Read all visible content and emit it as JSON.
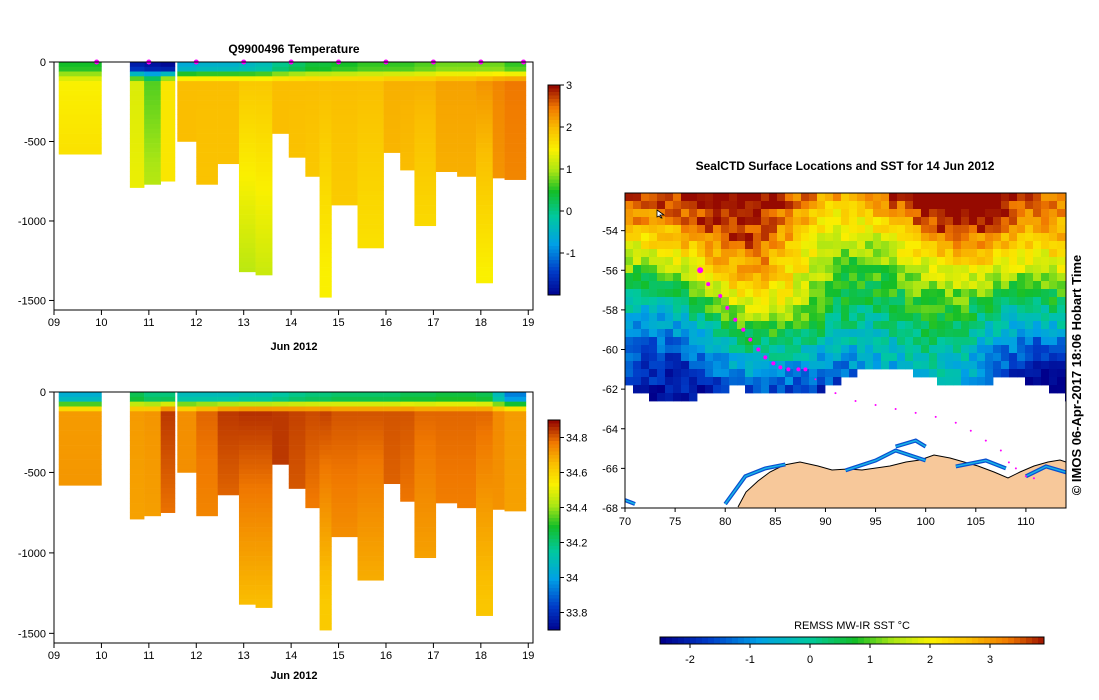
{
  "chart_data": [
    {
      "type": "heatmap",
      "id": "temperature",
      "title": "Q9900496  Temperature",
      "xlabel": "Jun 2012",
      "x_ticks": [
        "09",
        "10",
        "11",
        "12",
        "13",
        "14",
        "15",
        "16",
        "17",
        "18",
        "19"
      ],
      "x_range": [
        9.0,
        19.1
      ],
      "y_ticks": [
        "0",
        "-500",
        "-1000",
        "-1500"
      ],
      "y_range": [
        -1560,
        0
      ],
      "colorbar_ticks": [
        "3",
        "2",
        "1",
        "0",
        "-1"
      ],
      "colorbar_range": [
        -2,
        3
      ],
      "profiles": [
        {
          "t0": 9.1,
          "t1": 10.0,
          "depth": 580,
          "surface": 0.5,
          "mixed": 1.5,
          "deep": 1.9
        },
        {
          "t0": 10.6,
          "t1": 10.9,
          "depth": 790,
          "surface": -1.7,
          "mixed": 1.3,
          "deep": 1.5
        },
        {
          "t0": 10.9,
          "t1": 11.25,
          "depth": 770,
          "surface": -1.8,
          "mixed": 0.7,
          "deep": 1.4
        },
        {
          "t0": 11.25,
          "t1": 11.55,
          "depth": 750,
          "surface": -1.9,
          "mixed": 1.6,
          "deep": 1.6
        },
        {
          "t0": 11.6,
          "t1": 12.0,
          "depth": 500,
          "surface": -0.6,
          "mixed": 2.0,
          "deep": 2.0
        },
        {
          "t0": 12.0,
          "t1": 12.45,
          "depth": 770,
          "surface": -0.5,
          "mixed": 2.0,
          "deep": 1.9
        },
        {
          "t0": 12.45,
          "t1": 12.9,
          "depth": 640,
          "surface": -0.5,
          "mixed": 2.0,
          "deep": 1.9
        },
        {
          "t0": 12.9,
          "t1": 13.25,
          "depth": 1320,
          "surface": -0.4,
          "mixed": 1.9,
          "deep": 1.1
        },
        {
          "t0": 13.25,
          "t1": 13.6,
          "depth": 1340,
          "surface": -0.3,
          "mixed": 1.9,
          "deep": 1.2
        },
        {
          "t0": 13.6,
          "t1": 13.95,
          "depth": 450,
          "surface": 0.0,
          "mixed": 2.0,
          "deep": 2.0
        },
        {
          "t0": 13.95,
          "t1": 14.3,
          "depth": 600,
          "surface": 0.2,
          "mixed": 2.0,
          "deep": 1.9
        },
        {
          "t0": 14.3,
          "t1": 14.6,
          "depth": 720,
          "surface": 0.4,
          "mixed": 2.0,
          "deep": 1.8
        },
        {
          "t0": 14.6,
          "t1": 14.85,
          "depth": 1480,
          "surface": 0.4,
          "mixed": 2.0,
          "deep": 1.5
        },
        {
          "t0": 14.85,
          "t1": 15.4,
          "depth": 900,
          "surface": 0.5,
          "mixed": 2.0,
          "deep": 1.8
        },
        {
          "t0": 15.4,
          "t1": 15.95,
          "depth": 1170,
          "surface": 0.6,
          "mixed": 2.0,
          "deep": 1.6
        },
        {
          "t0": 15.95,
          "t1": 16.3,
          "depth": 570,
          "surface": 0.6,
          "mixed": 2.1,
          "deep": 2.0
        },
        {
          "t0": 16.3,
          "t1": 16.6,
          "depth": 680,
          "surface": 0.6,
          "mixed": 2.1,
          "deep": 1.9
        },
        {
          "t0": 16.6,
          "t1": 17.05,
          "depth": 1030,
          "surface": 0.7,
          "mixed": 2.1,
          "deep": 1.6
        },
        {
          "t0": 17.05,
          "t1": 17.5,
          "depth": 690,
          "surface": 0.8,
          "mixed": 2.2,
          "deep": 2.0
        },
        {
          "t0": 17.5,
          "t1": 17.9,
          "depth": 720,
          "surface": 0.8,
          "mixed": 2.2,
          "deep": 2.0
        },
        {
          "t0": 17.9,
          "t1": 18.25,
          "depth": 1390,
          "surface": 0.8,
          "mixed": 2.3,
          "deep": 1.5
        },
        {
          "t0": 18.25,
          "t1": 18.5,
          "depth": 730,
          "surface": 0.8,
          "mixed": 2.4,
          "deep": 2.2
        },
        {
          "t0": 18.5,
          "t1": 18.95,
          "depth": 740,
          "surface": 0.6,
          "mixed": 2.5,
          "deep": 2.3
        }
      ],
      "markers": [
        9.9,
        11.0,
        12.0,
        13.0,
        14.0,
        15.0,
        16.0,
        17.0,
        18.0,
        18.9
      ]
    },
    {
      "type": "heatmap",
      "id": "salinity",
      "title": "",
      "xlabel": "Jun 2012",
      "x_ticks": [
        "09",
        "10",
        "11",
        "12",
        "13",
        "14",
        "15",
        "16",
        "17",
        "18",
        "19"
      ],
      "x_range": [
        9.0,
        19.1
      ],
      "y_ticks": [
        "0",
        "-500",
        "-1000",
        "-1500"
      ],
      "y_range": [
        -1560,
        0
      ],
      "colorbar_ticks": [
        "34.8",
        "34.6",
        "34.4",
        "34.2",
        "34",
        "33.8"
      ],
      "colorbar_range": [
        33.7,
        34.9
      ],
      "profiles": [
        {
          "t0": 9.1,
          "t1": 10.0,
          "depth": 580,
          "surface": 34.05,
          "mixed": 34.72,
          "deep": 34.74
        },
        {
          "t0": 10.6,
          "t1": 10.9,
          "depth": 790,
          "surface": 34.25,
          "mixed": 34.72,
          "deep": 34.7
        },
        {
          "t0": 10.9,
          "t1": 11.25,
          "depth": 770,
          "surface": 34.2,
          "mixed": 34.73,
          "deep": 34.7
        },
        {
          "t0": 11.25,
          "t1": 11.55,
          "depth": 750,
          "surface": 34.2,
          "mixed": 34.85,
          "deep": 34.73
        },
        {
          "t0": 11.6,
          "t1": 12.0,
          "depth": 500,
          "surface": 34.1,
          "mixed": 34.74,
          "deep": 34.74
        },
        {
          "t0": 12.0,
          "t1": 12.45,
          "depth": 770,
          "surface": 34.1,
          "mixed": 34.8,
          "deep": 34.72
        },
        {
          "t0": 12.45,
          "t1": 12.9,
          "depth": 640,
          "surface": 34.1,
          "mixed": 34.85,
          "deep": 34.74
        },
        {
          "t0": 12.9,
          "t1": 13.25,
          "depth": 1320,
          "surface": 34.12,
          "mixed": 34.86,
          "deep": 34.66
        },
        {
          "t0": 13.25,
          "t1": 13.6,
          "depth": 1340,
          "surface": 34.12,
          "mixed": 34.86,
          "deep": 34.66
        },
        {
          "t0": 13.6,
          "t1": 13.95,
          "depth": 450,
          "surface": 34.15,
          "mixed": 34.85,
          "deep": 34.85
        },
        {
          "t0": 13.95,
          "t1": 14.3,
          "depth": 600,
          "surface": 34.18,
          "mixed": 34.84,
          "deep": 34.78
        },
        {
          "t0": 14.3,
          "t1": 14.6,
          "depth": 720,
          "surface": 34.2,
          "mixed": 34.83,
          "deep": 34.72
        },
        {
          "t0": 14.6,
          "t1": 14.85,
          "depth": 1480,
          "surface": 34.2,
          "mixed": 34.84,
          "deep": 34.63
        },
        {
          "t0": 14.85,
          "t1": 15.4,
          "depth": 900,
          "surface": 34.22,
          "mixed": 34.82,
          "deep": 34.7
        },
        {
          "t0": 15.4,
          "t1": 15.95,
          "depth": 1170,
          "surface": 34.22,
          "mixed": 34.82,
          "deep": 34.67
        },
        {
          "t0": 15.95,
          "t1": 16.3,
          "depth": 570,
          "surface": 34.22,
          "mixed": 34.82,
          "deep": 34.78
        },
        {
          "t0": 16.3,
          "t1": 16.6,
          "depth": 680,
          "surface": 34.25,
          "mixed": 34.82,
          "deep": 34.74
        },
        {
          "t0": 16.6,
          "t1": 17.05,
          "depth": 1030,
          "surface": 34.25,
          "mixed": 34.8,
          "deep": 34.68
        },
        {
          "t0": 17.05,
          "t1": 17.5,
          "depth": 690,
          "surface": 34.27,
          "mixed": 34.8,
          "deep": 34.74
        },
        {
          "t0": 17.5,
          "t1": 17.9,
          "depth": 720,
          "surface": 34.27,
          "mixed": 34.8,
          "deep": 34.74
        },
        {
          "t0": 17.9,
          "t1": 18.25,
          "depth": 1390,
          "surface": 34.25,
          "mixed": 34.8,
          "deep": 34.64
        },
        {
          "t0": 18.25,
          "t1": 18.5,
          "depth": 730,
          "surface": 34.1,
          "mixed": 34.75,
          "deep": 34.72
        },
        {
          "t0": 18.5,
          "t1": 18.95,
          "depth": 740,
          "surface": 33.95,
          "mixed": 34.72,
          "deep": 34.7
        }
      ],
      "markers": []
    },
    {
      "type": "heatmap",
      "id": "sst_map",
      "title": "SealCTD Surface Locations and SST for 14 Jun 2012",
      "x_ticks": [
        "70",
        "75",
        "80",
        "85",
        "90",
        "95",
        "100",
        "105",
        "110"
      ],
      "x_range": [
        70,
        114
      ],
      "y_ticks": [
        "-54",
        "-56",
        "-58",
        "-60",
        "-62",
        "-64",
        "-66",
        "-68"
      ],
      "y_range": [
        -68,
        -52.1
      ],
      "colorbar_title": "REMSS MW-IR SST °C",
      "colorbar_ticks": [
        "-2",
        "-1",
        "0",
        "1",
        "2",
        "3"
      ],
      "colorbar_range": [
        -2.5,
        3.9
      ],
      "track": [
        [
          77.5,
          -56.0
        ],
        [
          78.3,
          -56.7
        ],
        [
          79.5,
          -57.3
        ],
        [
          80.2,
          -57.9
        ],
        [
          81.0,
          -58.5
        ],
        [
          81.8,
          -59.0
        ],
        [
          82.5,
          -59.5
        ],
        [
          83.3,
          -60.0
        ],
        [
          84.0,
          -60.4
        ],
        [
          84.8,
          -60.7
        ],
        [
          85.5,
          -60.9
        ],
        [
          86.3,
          -61.0
        ],
        [
          87.3,
          -61.0
        ],
        [
          88.0,
          -61.0
        ],
        [
          89.0,
          -61.5
        ],
        [
          91.0,
          -62.2
        ],
        [
          93.0,
          -62.6
        ],
        [
          95.0,
          -62.8
        ],
        [
          97.0,
          -63.0
        ],
        [
          99.0,
          -63.2
        ],
        [
          101.0,
          -63.4
        ],
        [
          103.0,
          -63.7
        ],
        [
          104.5,
          -64.1
        ],
        [
          106.0,
          -64.6
        ],
        [
          107.5,
          -65.1
        ],
        [
          108.3,
          -65.7
        ],
        [
          109.0,
          -66.0
        ],
        [
          110.0,
          -66.4
        ],
        [
          110.8,
          -66.5
        ]
      ],
      "timestamp": "©  IMOS 06-Apr-2017 18:06 Hobart Time"
    }
  ]
}
